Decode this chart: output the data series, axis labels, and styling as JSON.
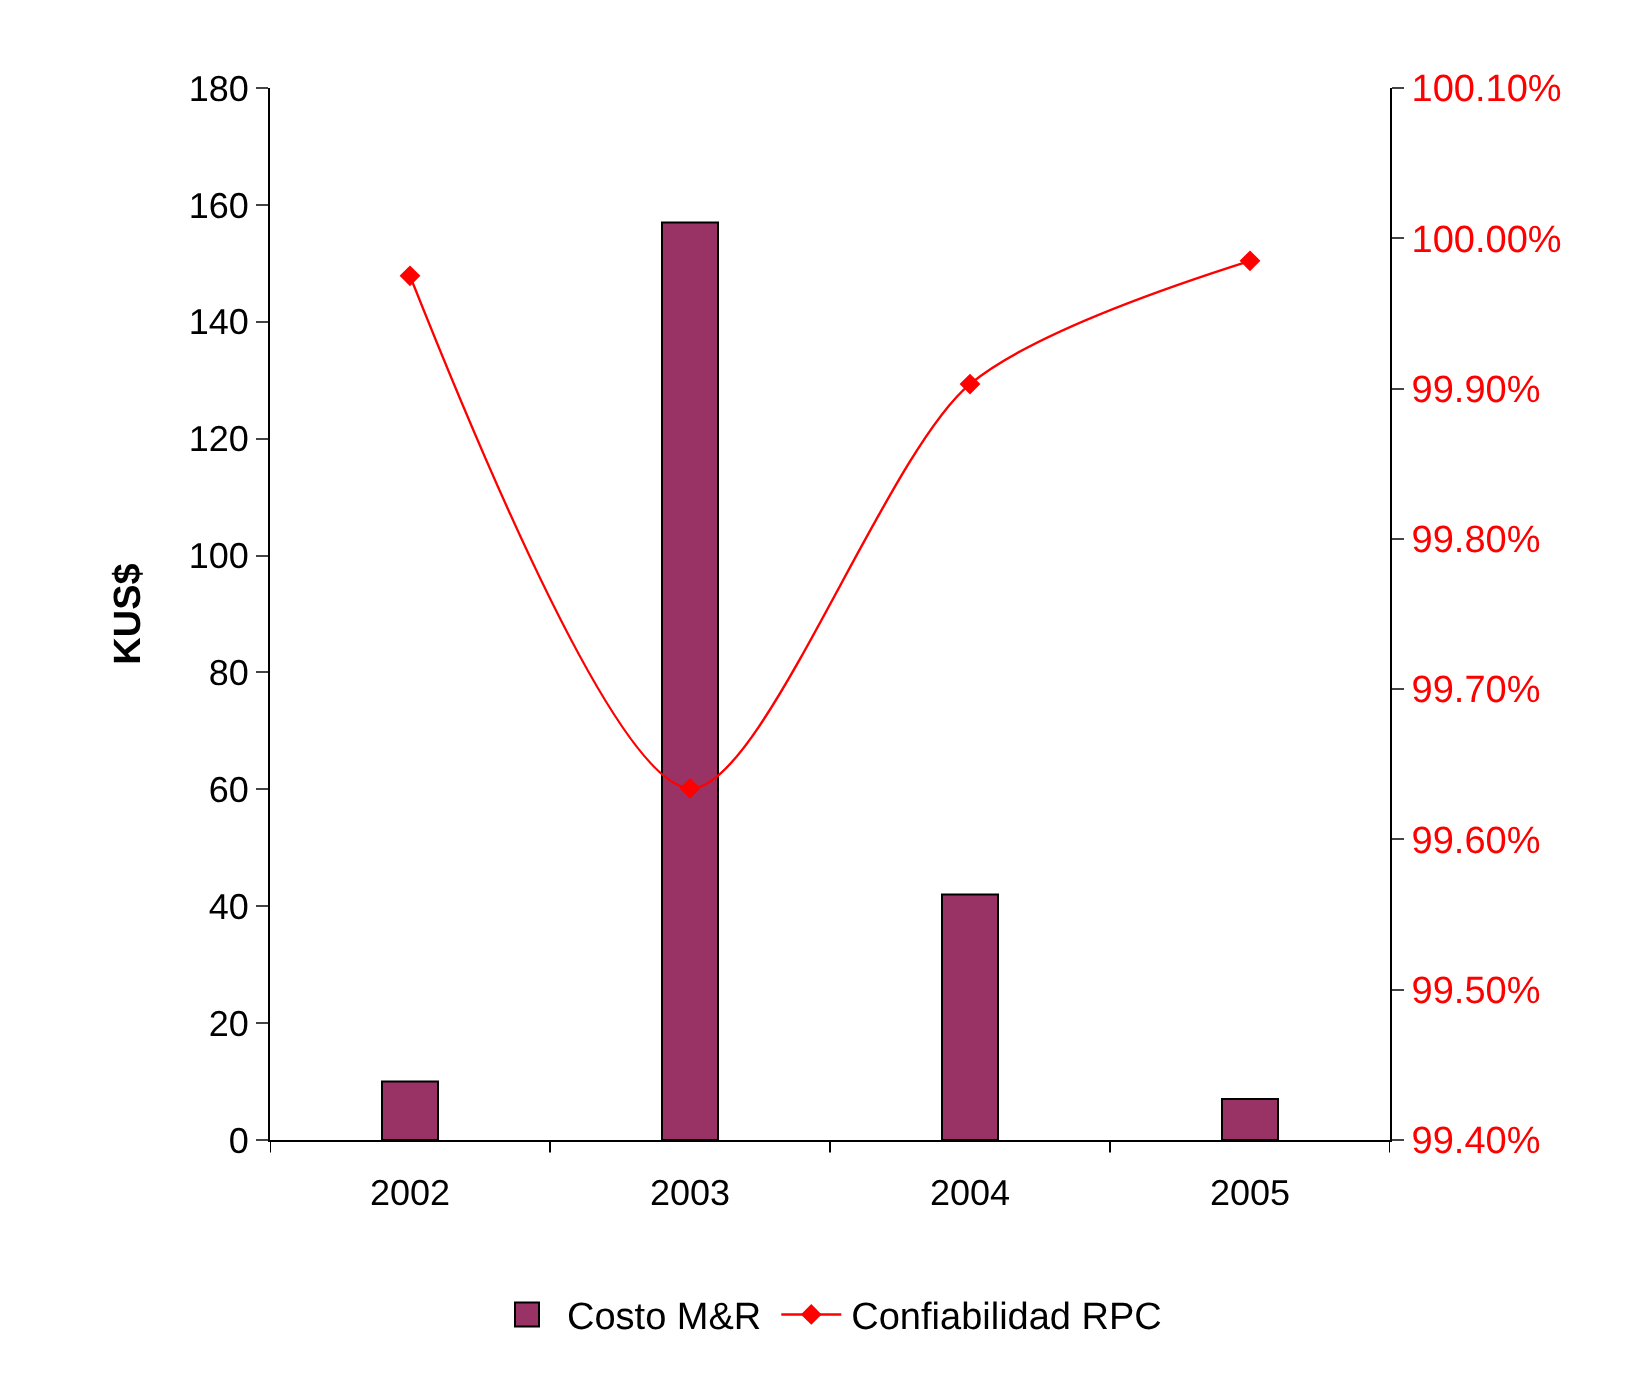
{
  "chart_data": {
    "type": "bar",
    "categories": [
      "2002",
      "2003",
      "2004",
      "2005"
    ],
    "ylabel": "KUS$",
    "ylim": [
      0,
      180
    ],
    "yticks": [
      0,
      20,
      40,
      60,
      80,
      100,
      120,
      140,
      160,
      180
    ],
    "y2lim": [
      99.4,
      100.1
    ],
    "y2ticks": [
      {
        "value": 99.4,
        "label": "99.40%"
      },
      {
        "value": 99.5,
        "label": "99.50%"
      },
      {
        "value": 99.6,
        "label": "99.60%"
      },
      {
        "value": 99.7,
        "label": "99.70%"
      },
      {
        "value": 99.8,
        "label": "99.80%"
      },
      {
        "value": 99.9,
        "label": "99.90%"
      },
      {
        "value": 100.0,
        "label": "100.00%"
      },
      {
        "value": 100.1,
        "label": "100.10%"
      }
    ],
    "series": [
      {
        "name": "Costo M&R",
        "color": "#993366",
        "values": [
          10,
          157,
          42,
          7
        ]
      },
      {
        "name": "Confiabilidad RPC",
        "type": "line",
        "axis": "y2",
        "color": "#ff0000",
        "marker": "diamond",
        "values": [
          99.975,
          99.634,
          99.903,
          99.985
        ]
      }
    ],
    "legend": "bottom",
    "grid": false
  }
}
